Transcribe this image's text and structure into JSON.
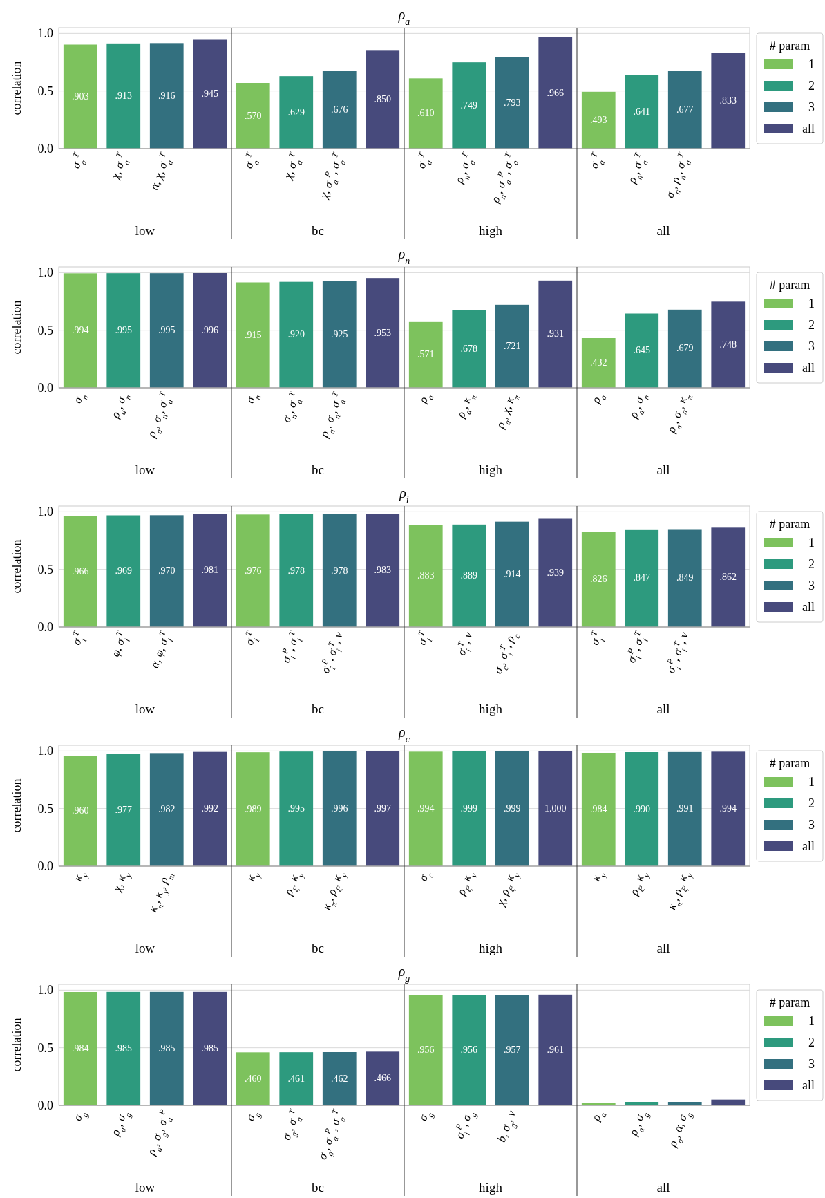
{
  "chart_data": [
    {
      "type": "bar",
      "title": "ρ$_{a}$",
      "ylabel": "correlation",
      "stacked": true,
      "ylim": [
        0,
        1.05
      ],
      "yticks": [
        {
          "value": 0,
          "label": "0.0"
        },
        {
          "value": 0.5,
          "label": "0.5"
        },
        {
          "value": 1,
          "label": "1.0"
        }
      ],
      "grid": "y",
      "legend": "right",
      "legend_title": "# param",
      "annotations": [
        "low",
        "bc",
        "high",
        "all"
      ],
      "categories": [
        "σ$_{a}$$^{T}$",
        "χ, σ$_{a}$$^{T}$",
        "α, χ, σ$_{a}$$^{T}$",
        null,
        "σ$_{a}$$^{T}$",
        "χ, σ$_{a}$$^{T}$",
        "χ, σ$_{a}$$^{P}$, σ$_{a}$$^{T}$",
        null,
        "σ$_{a}$$^{T}$",
        "ρ$_{n}$, σ$_{a}$$^{T}$",
        "ρ$_{n}$, σ$_{a}$$^{P}$, σ$_{a}$$^{T}$",
        null,
        "σ$_{a}$$^{T}$",
        "ρ$_{n}$, σ$_{a}$$^{T}$",
        "σ$_{n}$, ρ$_{n}$, σ$_{a}$$^{T}$",
        null
      ],
      "series": [
        {
          "name": "1",
          "color": "#7dc25d",
          "values": [
            0.903,
            null,
            null,
            null,
            0.57,
            null,
            null,
            null,
            0.61,
            null,
            null,
            null,
            0.493,
            null,
            null,
            null
          ],
          "value_labels": [
            ".903",
            null,
            null,
            null,
            ".570",
            null,
            null,
            null,
            ".610",
            null,
            null,
            null,
            ".493",
            null,
            null,
            null
          ]
        },
        {
          "name": "2",
          "color": "#2d9a7e",
          "values": [
            null,
            0.913,
            null,
            null,
            null,
            0.629,
            null,
            null,
            null,
            0.749,
            null,
            null,
            null,
            0.641,
            null,
            null
          ],
          "value_labels": [
            null,
            ".913",
            null,
            null,
            null,
            ".629",
            null,
            null,
            null,
            ".749",
            null,
            null,
            null,
            ".641",
            null,
            null
          ]
        },
        {
          "name": "3",
          "color": "#33707f",
          "values": [
            null,
            null,
            0.916,
            null,
            null,
            null,
            0.676,
            null,
            null,
            null,
            0.793,
            null,
            null,
            null,
            0.677,
            null
          ],
          "value_labels": [
            null,
            null,
            ".916",
            null,
            null,
            null,
            ".676",
            null,
            null,
            null,
            ".793",
            null,
            null,
            null,
            ".677",
            null
          ]
        },
        {
          "name": "all",
          "color": "#474a7c",
          "values": [
            null,
            null,
            null,
            0.945,
            null,
            null,
            null,
            0.85,
            null,
            null,
            null,
            0.966,
            null,
            null,
            null,
            0.833
          ],
          "value_labels": [
            null,
            null,
            null,
            ".945",
            null,
            null,
            null,
            ".850",
            null,
            null,
            null,
            ".966",
            null,
            null,
            null,
            ".833"
          ]
        }
      ]
    },
    {
      "type": "bar",
      "title": "ρ$_{n}$",
      "ylabel": "correlation",
      "stacked": true,
      "ylim": [
        0,
        1.05
      ],
      "yticks": [
        {
          "value": 0,
          "label": "0.0"
        },
        {
          "value": 0.5,
          "label": "0.5"
        },
        {
          "value": 1,
          "label": "1.0"
        }
      ],
      "grid": "y",
      "legend": "right",
      "legend_title": "# param",
      "annotations": [
        "low",
        "bc",
        "high",
        "all"
      ],
      "categories": [
        "σ$_{n}$",
        "ρ$_{a}$, σ$_{n}$",
        "ρ$_{a}$, σ$_{n}$, σ$_{a}$$^{T}$",
        null,
        "σ$_{n}$",
        "σ$_{n}$, σ$_{a}$$^{T}$",
        "ρ$_{a}$, σ$_{n}$, σ$_{a}$$^{T}$",
        null,
        "ρ$_{a}$",
        "ρ$_{a}$, κ$_{π}$",
        "ρ$_{a}$, χ, κ$_{π}$",
        null,
        "ρ$_{a}$",
        "ρ$_{a}$, σ$_{n}$",
        "ρ$_{a}$, σ$_{n}$, κ$_{π}$",
        null
      ],
      "series": [
        {
          "name": "1",
          "color": "#7dc25d",
          "values": [
            0.994,
            null,
            null,
            null,
            0.915,
            null,
            null,
            null,
            0.571,
            null,
            null,
            null,
            0.432,
            null,
            null,
            null
          ],
          "value_labels": [
            ".994",
            null,
            null,
            null,
            ".915",
            null,
            null,
            null,
            ".571",
            null,
            null,
            null,
            ".432",
            null,
            null,
            null
          ]
        },
        {
          "name": "2",
          "color": "#2d9a7e",
          "values": [
            null,
            0.995,
            null,
            null,
            null,
            0.92,
            null,
            null,
            null,
            0.678,
            null,
            null,
            null,
            0.645,
            null,
            null
          ],
          "value_labels": [
            null,
            ".995",
            null,
            null,
            null,
            ".920",
            null,
            null,
            null,
            ".678",
            null,
            null,
            null,
            ".645",
            null,
            null
          ]
        },
        {
          "name": "3",
          "color": "#33707f",
          "values": [
            null,
            null,
            0.995,
            null,
            null,
            null,
            0.925,
            null,
            null,
            null,
            0.721,
            null,
            null,
            null,
            0.679,
            null
          ],
          "value_labels": [
            null,
            null,
            ".995",
            null,
            null,
            null,
            ".925",
            null,
            null,
            null,
            ".721",
            null,
            null,
            null,
            ".679",
            null
          ]
        },
        {
          "name": "all",
          "color": "#474a7c",
          "values": [
            null,
            null,
            null,
            0.996,
            null,
            null,
            null,
            0.953,
            null,
            null,
            null,
            0.931,
            null,
            null,
            null,
            0.748
          ],
          "value_labels": [
            null,
            null,
            null,
            ".996",
            null,
            null,
            null,
            ".953",
            null,
            null,
            null,
            ".931",
            null,
            null,
            null,
            ".748"
          ]
        }
      ]
    },
    {
      "type": "bar",
      "title": "ρ$_{i}$",
      "ylabel": "correlation",
      "stacked": true,
      "ylim": [
        0,
        1.05
      ],
      "yticks": [
        {
          "value": 0,
          "label": "0.0"
        },
        {
          "value": 0.5,
          "label": "0.5"
        },
        {
          "value": 1,
          "label": "1.0"
        }
      ],
      "grid": "y",
      "legend": "right",
      "legend_title": "# param",
      "annotations": [
        "low",
        "bc",
        "high",
        "all"
      ],
      "categories": [
        "σ$_{i}$$^{T}$",
        "φ, σ$_{i}$$^{T}$",
        "α, φ, σ$_{i}$$^{T}$",
        null,
        "σ$_{i}$$^{T}$",
        "σ$_{i}$$^{P}$, σ$_{i}$$^{T}$",
        "σ$_{i}$$^{P}$, σ$_{i}$$^{T}$, ν",
        null,
        "σ$_{i}$$^{T}$",
        "σ$_{i}$$^{T}$, ν",
        "σ$_{c}$, σ$_{i}$$^{T}$, ρ$_{c}$",
        null,
        "σ$_{i}$$^{T}$",
        "σ$_{i}$$^{P}$, σ$_{i}$$^{T}$",
        "σ$_{i}$$^{P}$, σ$_{i}$$^{T}$, ν",
        null
      ],
      "series": [
        {
          "name": "1",
          "color": "#7dc25d",
          "values": [
            0.966,
            null,
            null,
            null,
            0.976,
            null,
            null,
            null,
            0.883,
            null,
            null,
            null,
            0.826,
            null,
            null,
            null
          ],
          "value_labels": [
            ".966",
            null,
            null,
            null,
            ".976",
            null,
            null,
            null,
            ".883",
            null,
            null,
            null,
            ".826",
            null,
            null,
            null
          ]
        },
        {
          "name": "2",
          "color": "#2d9a7e",
          "values": [
            null,
            0.969,
            null,
            null,
            null,
            0.978,
            null,
            null,
            null,
            0.889,
            null,
            null,
            null,
            0.847,
            null,
            null
          ],
          "value_labels": [
            null,
            ".969",
            null,
            null,
            null,
            ".978",
            null,
            null,
            null,
            ".889",
            null,
            null,
            null,
            ".847",
            null,
            null
          ]
        },
        {
          "name": "3",
          "color": "#33707f",
          "values": [
            null,
            null,
            0.97,
            null,
            null,
            null,
            0.978,
            null,
            null,
            null,
            0.914,
            null,
            null,
            null,
            0.849,
            null
          ],
          "value_labels": [
            null,
            null,
            ".970",
            null,
            null,
            null,
            ".978",
            null,
            null,
            null,
            ".914",
            null,
            null,
            null,
            ".849",
            null
          ]
        },
        {
          "name": "all",
          "color": "#474a7c",
          "values": [
            null,
            null,
            null,
            0.981,
            null,
            null,
            null,
            0.983,
            null,
            null,
            null,
            0.939,
            null,
            null,
            null,
            0.862
          ],
          "value_labels": [
            null,
            null,
            null,
            ".981",
            null,
            null,
            null,
            ".983",
            null,
            null,
            null,
            ".939",
            null,
            null,
            null,
            ".862"
          ]
        }
      ]
    },
    {
      "type": "bar",
      "title": "ρ$_{c}$",
      "ylabel": "correlation",
      "stacked": true,
      "ylim": [
        0,
        1.05
      ],
      "yticks": [
        {
          "value": 0,
          "label": "0.0"
        },
        {
          "value": 0.5,
          "label": "0.5"
        },
        {
          "value": 1,
          "label": "1.0"
        }
      ],
      "grid": "y",
      "legend": "right",
      "legend_title": "# param",
      "annotations": [
        "low",
        "bc",
        "high",
        "all"
      ],
      "categories": [
        "κ$_{y}$",
        "χ, κ$_{y}$",
        "κ$_{π}$, κ$_{y}$, ρ$_{m}$",
        null,
        "κ$_{y}$",
        "ρ$_{ξ}$, κ$_{y}$",
        "κ$_{π}$, ρ$_{ξ}$, κ$_{y}$",
        null,
        "σ$_{c}$",
        "ρ$_{ξ}$, κ$_{y}$",
        "χ, ρ$_{ξ}$, κ$_{y}$",
        null,
        "κ$_{y}$",
        "ρ$_{ξ}$, κ$_{y}$",
        "κ$_{π}$, ρ$_{ξ}$, κ$_{y}$",
        null
      ],
      "series": [
        {
          "name": "1",
          "color": "#7dc25d",
          "values": [
            0.96,
            null,
            null,
            null,
            0.989,
            null,
            null,
            null,
            0.994,
            null,
            null,
            null,
            0.984,
            null,
            null,
            null
          ],
          "value_labels": [
            ".960",
            null,
            null,
            null,
            ".989",
            null,
            null,
            null,
            ".994",
            null,
            null,
            null,
            ".984",
            null,
            null,
            null
          ]
        },
        {
          "name": "2",
          "color": "#2d9a7e",
          "values": [
            null,
            0.977,
            null,
            null,
            null,
            0.995,
            null,
            null,
            null,
            0.999,
            null,
            null,
            null,
            0.99,
            null,
            null
          ],
          "value_labels": [
            null,
            ".977",
            null,
            null,
            null,
            ".995",
            null,
            null,
            null,
            ".999",
            null,
            null,
            null,
            ".990",
            null,
            null
          ]
        },
        {
          "name": "3",
          "color": "#33707f",
          "values": [
            null,
            null,
            0.982,
            null,
            null,
            null,
            0.996,
            null,
            null,
            null,
            0.999,
            null,
            null,
            null,
            0.991,
            null
          ],
          "value_labels": [
            null,
            null,
            ".982",
            null,
            null,
            null,
            ".996",
            null,
            null,
            null,
            ".999",
            null,
            null,
            null,
            ".991",
            null
          ]
        },
        {
          "name": "all",
          "color": "#474a7c",
          "values": [
            null,
            null,
            null,
            0.992,
            null,
            null,
            null,
            0.997,
            null,
            null,
            null,
            1.0,
            null,
            null,
            null,
            0.994
          ],
          "value_labels": [
            null,
            null,
            null,
            ".992",
            null,
            null,
            null,
            ".997",
            null,
            null,
            null,
            "1.000",
            null,
            null,
            null,
            ".994"
          ]
        }
      ]
    },
    {
      "type": "bar",
      "title": "ρ$_{g}$",
      "ylabel": "correlation",
      "stacked": true,
      "ylim": [
        0,
        1.05
      ],
      "yticks": [
        {
          "value": 0,
          "label": "0.0"
        },
        {
          "value": 0.5,
          "label": "0.5"
        },
        {
          "value": 1,
          "label": "1.0"
        }
      ],
      "grid": "y",
      "legend": "right",
      "legend_title": "# param",
      "annotations": [
        "low",
        "bc",
        "high",
        "all"
      ],
      "categories": [
        "σ$_{g}$",
        "ρ$_{a}$, σ$_{g}$",
        "ρ$_{a}$, σ$_{g}$, σ$_{a}$$^{P}$",
        null,
        "σ$_{g}$",
        "σ$_{g}$, σ$_{a}$$^{T}$",
        "σ$_{g}$, σ$_{a}$$^{P}$, σ$_{a}$$^{T}$",
        null,
        "σ$_{g}$",
        "σ$_{i}$$^{P}$, σ$_{g}$",
        "b, σ$_{g}$, ν",
        null,
        "ρ$_{a}$",
        "ρ$_{a}$, σ$_{g}$",
        "ρ$_{a}$, α, σ$_{g}$",
        null
      ],
      "series": [
        {
          "name": "1",
          "color": "#7dc25d",
          "values": [
            0.984,
            null,
            null,
            null,
            0.46,
            null,
            null,
            null,
            0.956,
            null,
            null,
            null,
            0.02,
            null,
            null,
            null
          ],
          "value_labels": [
            ".984",
            null,
            null,
            null,
            ".460",
            null,
            null,
            null,
            ".956",
            null,
            null,
            null,
            null,
            null,
            null,
            null
          ]
        },
        {
          "name": "2",
          "color": "#2d9a7e",
          "values": [
            null,
            0.985,
            null,
            null,
            null,
            0.461,
            null,
            null,
            null,
            0.956,
            null,
            null,
            null,
            0.03,
            null,
            null
          ],
          "value_labels": [
            null,
            ".985",
            null,
            null,
            null,
            ".461",
            null,
            null,
            null,
            ".956",
            null,
            null,
            null,
            null,
            null,
            null
          ]
        },
        {
          "name": "3",
          "color": "#33707f",
          "values": [
            null,
            null,
            0.985,
            null,
            null,
            null,
            0.462,
            null,
            null,
            null,
            0.957,
            null,
            null,
            null,
            0.03,
            null
          ],
          "value_labels": [
            null,
            null,
            ".985",
            null,
            null,
            null,
            ".462",
            null,
            null,
            null,
            ".957",
            null,
            null,
            null,
            null,
            null
          ]
        },
        {
          "name": "all",
          "color": "#474a7c",
          "values": [
            null,
            null,
            null,
            0.985,
            null,
            null,
            null,
            0.466,
            null,
            null,
            null,
            0.961,
            null,
            null,
            null,
            0.05
          ],
          "value_labels": [
            null,
            null,
            null,
            ".985",
            null,
            null,
            null,
            ".466",
            null,
            null,
            null,
            ".961",
            null,
            null,
            null,
            null
          ]
        }
      ]
    }
  ]
}
